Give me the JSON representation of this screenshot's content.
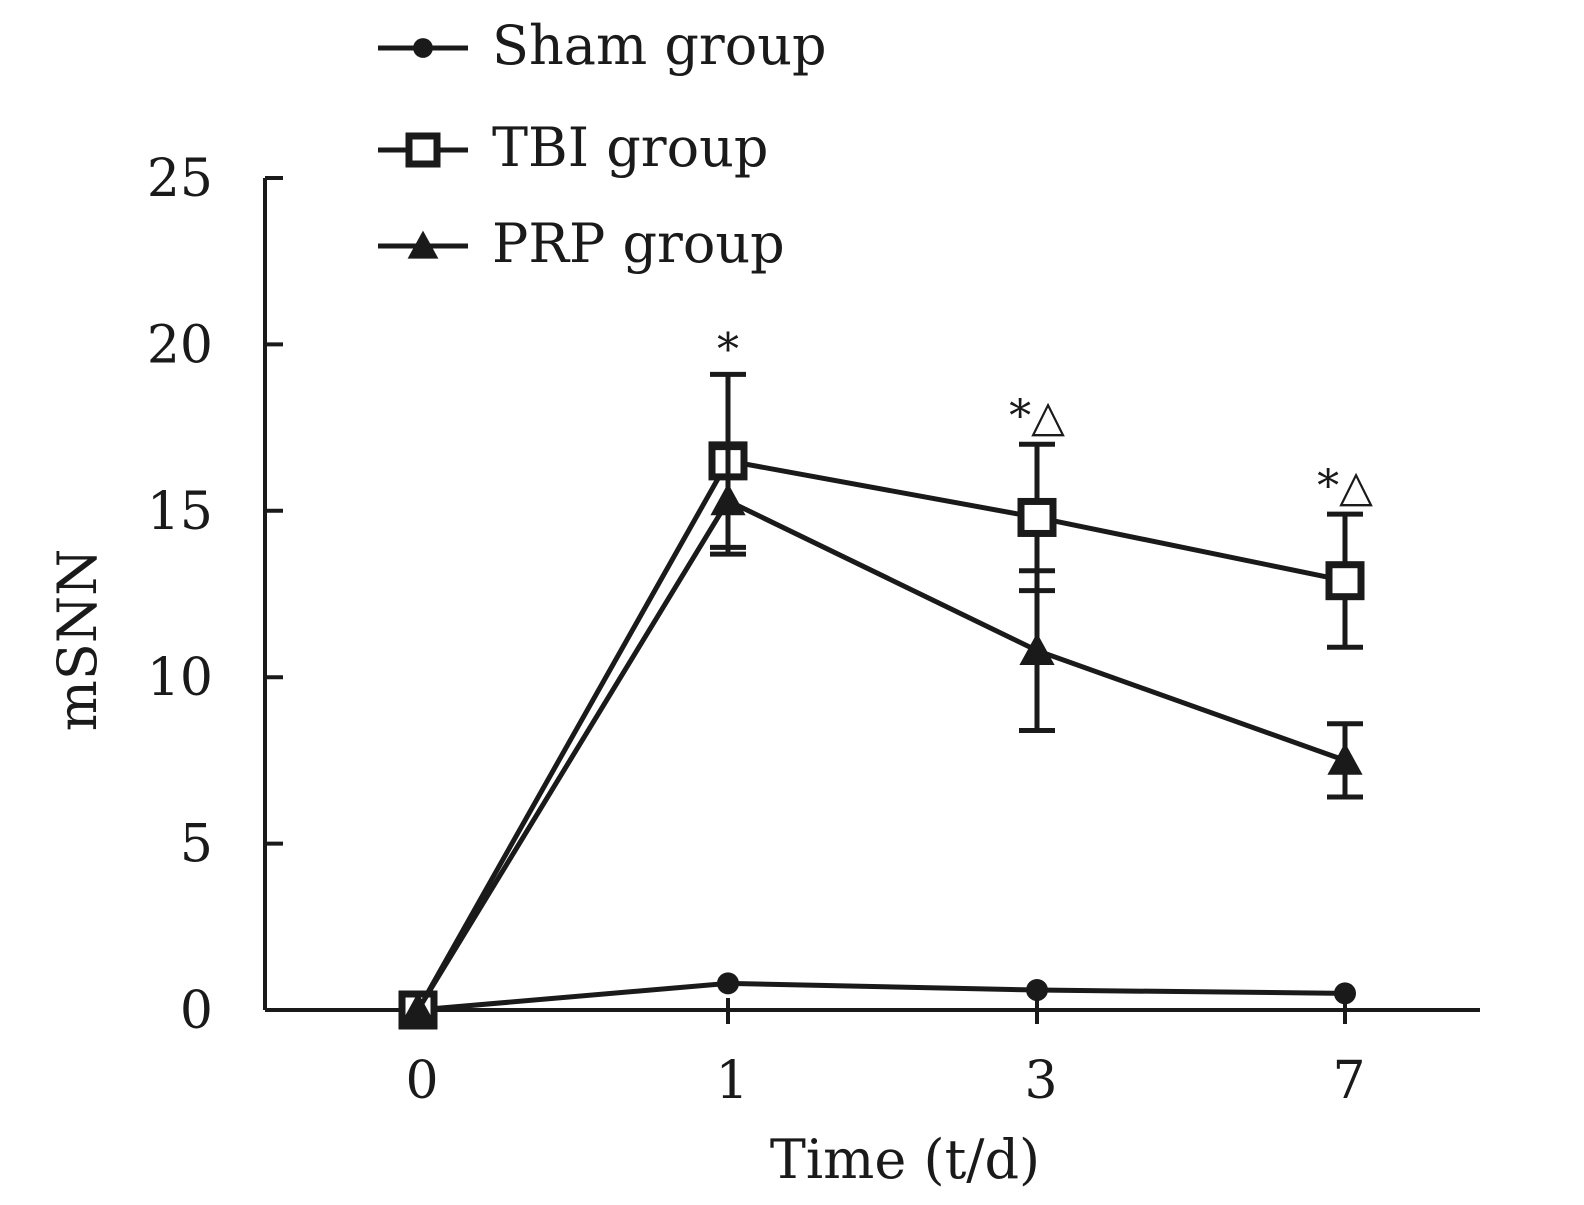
{
  "chart_data": {
    "type": "line",
    "title": "",
    "xlabel": "Time (t/d)",
    "ylabel": "mSNN",
    "categories": [
      "0",
      "1",
      "3",
      "7"
    ],
    "ylim": [
      0,
      25
    ],
    "yticks": [
      0,
      5,
      10,
      15,
      20,
      25
    ],
    "grid": false,
    "legend_position": "top-left",
    "series": [
      {
        "name": "Sham group",
        "marker": "circle",
        "values": [
          0,
          0.8,
          0.6,
          0.5
        ],
        "errors": [
          0,
          0,
          0,
          0
        ]
      },
      {
        "name": "TBI group",
        "marker": "square",
        "values": [
          0,
          16.5,
          14.8,
          12.9
        ],
        "errors": [
          0,
          2.6,
          2.2,
          2.0
        ]
      },
      {
        "name": "PRP group",
        "marker": "triangle",
        "values": [
          0,
          15.3,
          10.8,
          7.5
        ],
        "errors": [
          0,
          1.6,
          2.4,
          1.1
        ]
      }
    ],
    "annotations": [
      {
        "category": "1",
        "text": "*",
        "y": 19.4
      },
      {
        "category": "3",
        "text": "*△",
        "y": 17.4
      },
      {
        "category": "7",
        "text": "*△",
        "y": 15.3
      }
    ]
  }
}
